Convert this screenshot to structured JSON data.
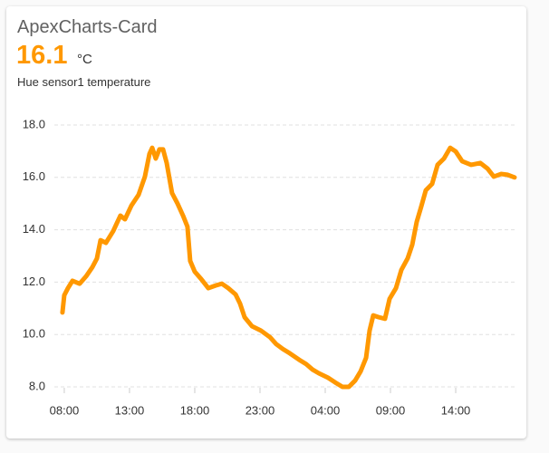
{
  "chart_data": {
    "type": "line",
    "title": "ApexCharts-Card",
    "current_value": 16.1,
    "unit": "°C",
    "x": [
      7.86,
      8.0,
      8.28,
      8.63,
      9.18,
      9.67,
      10.15,
      10.5,
      10.78,
      11.19,
      11.75,
      12.3,
      12.65,
      13.14,
      13.69,
      14.18,
      14.53,
      14.74,
      15.01,
      15.29,
      15.57,
      15.85,
      16.26,
      16.68,
      17.1,
      17.44,
      17.65,
      18.0,
      18.49,
      19.04,
      19.6,
      20.08,
      20.57,
      21.13,
      21.47,
      21.82,
      22.38,
      23.07,
      23.76,
      24.25,
      24.74,
      25.29,
      25.99,
      26.54,
      27.03,
      27.51,
      28.21,
      28.76,
      29.32,
      29.81,
      30.29,
      30.71,
      31.13,
      31.4,
      31.68,
      32.1,
      32.58,
      32.93,
      33.42,
      33.83,
      34.32,
      34.67,
      35.01,
      35.36,
      35.71,
      36.19,
      36.61,
      37.1,
      37.58,
      38.0,
      38.49,
      39.18,
      39.88,
      40.43,
      40.92,
      41.47,
      41.96,
      42.51
    ],
    "series": [
      {
        "name": "Hue sensor1 temperature",
        "color": "#ff9800",
        "values": [
          10.84,
          11.5,
          11.77,
          12.05,
          11.94,
          12.22,
          12.57,
          12.9,
          13.6,
          13.5,
          13.95,
          14.54,
          14.4,
          14.92,
          15.33,
          16.03,
          16.9,
          17.13,
          16.72,
          17.07,
          17.07,
          16.55,
          15.4,
          15.0,
          14.54,
          14.12,
          12.81,
          12.4,
          12.12,
          11.77,
          11.87,
          11.94,
          11.77,
          11.53,
          11.18,
          10.66,
          10.32,
          10.15,
          9.9,
          9.63,
          9.45,
          9.28,
          9.04,
          8.87,
          8.66,
          8.52,
          8.35,
          8.17,
          8.0,
          8.0,
          8.24,
          8.59,
          9.11,
          10.15,
          10.73,
          10.66,
          10.6,
          11.36,
          11.77,
          12.46,
          12.91,
          13.43,
          14.3,
          14.89,
          15.51,
          15.75,
          16.48,
          16.72,
          17.13,
          16.99,
          16.62,
          16.48,
          16.55,
          16.34,
          16.03,
          16.13,
          16.1,
          16.0
        ]
      }
    ],
    "xlim": [
      7.24,
      42.65
    ],
    "xticks": [
      {
        "value": 8,
        "label": "08:00"
      },
      {
        "value": 13,
        "label": "13:00"
      },
      {
        "value": 18,
        "label": "18:00"
      },
      {
        "value": 23,
        "label": "23:00"
      },
      {
        "value": 28,
        "label": "04:00"
      },
      {
        "value": 33,
        "label": "09:00"
      },
      {
        "value": 38,
        "label": "14:00"
      }
    ],
    "ylim": [
      8,
      18
    ],
    "yticks": [
      {
        "value": 8,
        "label": "8.0"
      },
      {
        "value": 10,
        "label": "10.0"
      },
      {
        "value": 12,
        "label": "12.0"
      },
      {
        "value": 14,
        "label": "14.0"
      },
      {
        "value": 16,
        "label": "16.0"
      },
      {
        "value": 18,
        "label": "18.0"
      }
    ],
    "grid": true
  }
}
